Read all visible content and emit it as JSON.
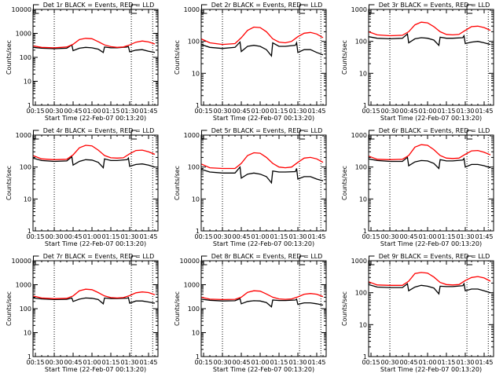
{
  "colors": {
    "events": "#000000",
    "lld": "#ff0000",
    "axes": "#000000"
  },
  "chart_data": {
    "type": "line",
    "xlabel": "Start Time (22-Feb-07 00:13:20)",
    "ylabel": "Counts/sec",
    "xlim_minutes": [
      13.1,
      112.5
    ],
    "xticks": [
      {
        "t": 15,
        "label": "00:15"
      },
      {
        "t": 30,
        "label": "00:30"
      },
      {
        "t": 45,
        "label": "00:45"
      },
      {
        "t": 60,
        "label": "01:00"
      },
      {
        "t": 75,
        "label": "01:15"
      },
      {
        "t": 90,
        "label": "01:30"
      },
      {
        "t": 105,
        "label": "01:45"
      }
    ],
    "dotted_lines_minutes": [
      30,
      91.3,
      108.3
    ],
    "markers": [
      {
        "t": 13.4,
        "label": "E"
      },
      {
        "t": 91.3,
        "label": "E"
      }
    ],
    "y_scale": "log",
    "red_times": [
      13,
      20,
      30,
      40,
      45,
      50,
      55,
      60,
      65,
      70,
      75,
      80,
      85,
      90,
      95,
      100,
      105,
      110
    ],
    "black_times": [
      13,
      20,
      30,
      40,
      44,
      45,
      50,
      55,
      60,
      65,
      69,
      70,
      75,
      80,
      88,
      89,
      90,
      95,
      100,
      105,
      110
    ],
    "panels": [
      {
        "title": "Det 1r BLACK = Events, RED = LLD",
        "ylim": [
          1,
          10000
        ],
        "yticks": [
          "1",
          "10",
          "100",
          "1000",
          "10000"
        ],
        "series": [
          {
            "name": "Events",
            "values": [
              260,
              240,
              230,
              240,
              330,
              190,
              240,
              260,
              250,
              220,
              160,
              270,
              250,
              250,
              270,
              280,
              170,
              200,
              210,
              180,
              160
            ]
          },
          {
            "name": "LLD",
            "values": [
              300,
              260,
              250,
              270,
              350,
              550,
              620,
              600,
              450,
              330,
              280,
              260,
              270,
              330,
              430,
              480,
              440,
              360
            ]
          }
        ]
      },
      {
        "title": "Det 2r BLACK = Events, RED = LLD",
        "ylim": [
          1,
          1000
        ],
        "yticks": [
          "1",
          "10",
          "100",
          "1000"
        ],
        "series": [
          {
            "name": "Events",
            "values": [
              80,
              65,
              60,
              65,
              95,
              48,
              70,
              75,
              70,
              55,
              35,
              90,
              70,
              70,
              75,
              90,
              45,
              55,
              55,
              45,
              38
            ]
          },
          {
            "name": "LLD",
            "values": [
              120,
              90,
              80,
              85,
              130,
              220,
              280,
              270,
              200,
              120,
              95,
              90,
              100,
              140,
              180,
              190,
              170,
              130
            ]
          }
        ]
      },
      {
        "title": "Det 3r BLACK = Events, RED = LLD",
        "ylim": [
          1,
          1000
        ],
        "yticks": [
          "1",
          "10",
          "100",
          "1000"
        ],
        "series": [
          {
            "name": "Events",
            "values": [
              140,
              125,
              120,
              125,
              170,
              90,
              120,
              130,
              125,
              110,
              75,
              135,
              125,
              125,
              130,
              150,
              85,
              95,
              100,
              90,
              80
            ]
          },
          {
            "name": "LLD",
            "values": [
              200,
              160,
              150,
              155,
              200,
              330,
              400,
              380,
              290,
              200,
              165,
              160,
              165,
              220,
              290,
              300,
              270,
              220
            ]
          }
        ]
      },
      {
        "title": "Det 4r BLACK = Events, RED = LLD",
        "ylim": [
          1,
          1000
        ],
        "yticks": [
          "1",
          "10",
          "100",
          "1000"
        ],
        "series": [
          {
            "name": "Events",
            "values": [
              190,
              160,
              150,
              155,
              210,
              115,
              150,
              170,
              165,
              140,
              95,
              180,
              160,
              160,
              170,
              190,
              105,
              120,
              125,
              115,
              100
            ]
          },
          {
            "name": "LLD",
            "values": [
              230,
              180,
              170,
              175,
              240,
              400,
              480,
              460,
              340,
              230,
              195,
              190,
              195,
              260,
              330,
              340,
              300,
              250
            ]
          }
        ]
      },
      {
        "title": "Det 5r BLACK = Events, RED = LLD",
        "ylim": [
          1,
          1000
        ],
        "yticks": [
          "1",
          "10",
          "100",
          "1000"
        ],
        "series": [
          {
            "name": "Events",
            "values": [
              85,
              70,
              65,
              65,
              100,
              45,
              60,
              65,
              60,
              50,
              32,
              75,
              70,
              70,
              72,
              90,
              42,
              50,
              50,
              42,
              37
            ]
          },
          {
            "name": "LLD",
            "values": [
              125,
              95,
              90,
              90,
              130,
              230,
              280,
              270,
              200,
              130,
              100,
              95,
              100,
              140,
              190,
              200,
              180,
              140
            ]
          }
        ]
      },
      {
        "title": "Det 6r BLACK = Events, RED = LLD",
        "ylim": [
          1,
          1000
        ],
        "yticks": [
          "1",
          "10",
          "100",
          "1000"
        ],
        "series": [
          {
            "name": "Events",
            "values": [
              180,
              160,
              150,
              150,
              200,
              110,
              145,
              160,
              155,
              130,
              90,
              170,
              155,
              155,
              165,
              185,
              100,
              120,
              120,
              110,
              95
            ]
          },
          {
            "name": "LLD",
            "values": [
              220,
              175,
              170,
              175,
              230,
              420,
              500,
              480,
              350,
              230,
              190,
              185,
              190,
              250,
              320,
              330,
              290,
              240
            ]
          }
        ]
      },
      {
        "title": "Det 7r BLACK = Events, RED = LLD",
        "ylim": [
          1,
          10000
        ],
        "yticks": [
          "1",
          "10",
          "100",
          "1000",
          "10000"
        ],
        "series": [
          {
            "name": "Events",
            "values": [
              280,
              255,
              240,
              245,
              280,
              200,
              250,
              280,
              270,
              240,
              160,
              280,
              265,
              265,
              275,
              290,
              170,
              210,
              210,
              190,
              170
            ]
          },
          {
            "name": "LLD",
            "values": [
              340,
              280,
              260,
              270,
              340,
              560,
              650,
              620,
              470,
              340,
              290,
              280,
              290,
              350,
              460,
              500,
              470,
              380
            ]
          }
        ]
      },
      {
        "title": "Det 8r BLACK = Events, RED = LLD",
        "ylim": [
          1,
          10000
        ],
        "yticks": [
          "1",
          "10",
          "100",
          "1000",
          "10000"
        ],
        "series": [
          {
            "name": "Events",
            "values": [
              250,
              225,
              210,
              215,
              260,
              160,
              200,
              215,
              210,
              180,
              120,
              230,
              220,
              220,
              230,
              250,
              150,
              175,
              175,
              160,
              140
            ]
          },
          {
            "name": "LLD",
            "values": [
              300,
              250,
              240,
              245,
              300,
              480,
              560,
              540,
              410,
              300,
              255,
              245,
              255,
              310,
              400,
              430,
              400,
              320
            ]
          }
        ]
      },
      {
        "title": "Det 9r BLACK = Events, RED = LLD",
        "ylim": [
          1,
          1000
        ],
        "yticks": [
          "1",
          "10",
          "100",
          "1000"
        ],
        "series": [
          {
            "name": "Events",
            "values": [
              180,
              150,
              145,
              145,
              190,
              115,
              150,
              170,
              160,
              140,
              92,
              160,
              155,
              155,
              165,
              190,
              115,
              130,
              130,
              115,
              100
            ]
          },
          {
            "name": "LLD",
            "values": [
              220,
              175,
              170,
              170,
              230,
              400,
              430,
              410,
              310,
              210,
              180,
              175,
              180,
              240,
              300,
              320,
              290,
              230
            ]
          }
        ]
      }
    ]
  }
}
